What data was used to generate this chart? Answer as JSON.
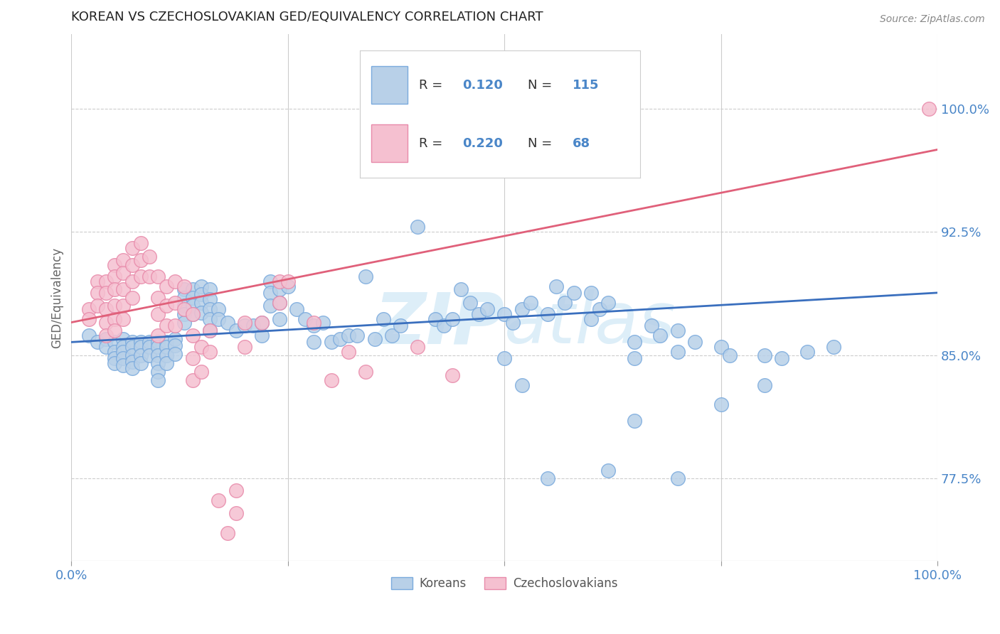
{
  "title": "KOREAN VS CZECHOSLOVAKIAN GED/EQUIVALENCY CORRELATION CHART",
  "source": "Source: ZipAtlas.com",
  "ylabel": "GED/Equivalency",
  "ytick_labels": [
    "77.5%",
    "85.0%",
    "92.5%",
    "100.0%"
  ],
  "ytick_values": [
    0.775,
    0.85,
    0.925,
    1.0
  ],
  "xrange": [
    0.0,
    1.0
  ],
  "yrange": [
    0.725,
    1.045
  ],
  "korean_color": "#b8d0e8",
  "korean_edge_color": "#7aaadd",
  "czech_color": "#f5c0d0",
  "czech_edge_color": "#e88aaa",
  "korean_line_color": "#3a6fbe",
  "czech_line_color": "#e0607a",
  "label_color": "#4a86c8",
  "watermark": "ZIPatlas",
  "watermark_color": "#ddeef8",
  "korean_scatter": [
    [
      0.02,
      0.862
    ],
    [
      0.03,
      0.858
    ],
    [
      0.04,
      0.86
    ],
    [
      0.04,
      0.855
    ],
    [
      0.05,
      0.858
    ],
    [
      0.05,
      0.852
    ],
    [
      0.05,
      0.848
    ],
    [
      0.05,
      0.845
    ],
    [
      0.06,
      0.86
    ],
    [
      0.06,
      0.855
    ],
    [
      0.06,
      0.852
    ],
    [
      0.06,
      0.848
    ],
    [
      0.06,
      0.844
    ],
    [
      0.07,
      0.858
    ],
    [
      0.07,
      0.855
    ],
    [
      0.07,
      0.85
    ],
    [
      0.07,
      0.846
    ],
    [
      0.07,
      0.842
    ],
    [
      0.08,
      0.858
    ],
    [
      0.08,
      0.855
    ],
    [
      0.08,
      0.85
    ],
    [
      0.08,
      0.845
    ],
    [
      0.09,
      0.858
    ],
    [
      0.09,
      0.855
    ],
    [
      0.09,
      0.85
    ],
    [
      0.1,
      0.858
    ],
    [
      0.1,
      0.855
    ],
    [
      0.1,
      0.85
    ],
    [
      0.1,
      0.845
    ],
    [
      0.1,
      0.84
    ],
    [
      0.1,
      0.835
    ],
    [
      0.11,
      0.858
    ],
    [
      0.11,
      0.855
    ],
    [
      0.11,
      0.85
    ],
    [
      0.11,
      0.845
    ],
    [
      0.12,
      0.86
    ],
    [
      0.12,
      0.856
    ],
    [
      0.12,
      0.851
    ],
    [
      0.13,
      0.89
    ],
    [
      0.13,
      0.885
    ],
    [
      0.13,
      0.88
    ],
    [
      0.13,
      0.875
    ],
    [
      0.13,
      0.87
    ],
    [
      0.14,
      0.89
    ],
    [
      0.14,
      0.885
    ],
    [
      0.14,
      0.88
    ],
    [
      0.14,
      0.875
    ],
    [
      0.15,
      0.892
    ],
    [
      0.15,
      0.887
    ],
    [
      0.15,
      0.882
    ],
    [
      0.15,
      0.876
    ],
    [
      0.16,
      0.89
    ],
    [
      0.16,
      0.884
    ],
    [
      0.16,
      0.878
    ],
    [
      0.16,
      0.872
    ],
    [
      0.16,
      0.865
    ],
    [
      0.17,
      0.878
    ],
    [
      0.17,
      0.872
    ],
    [
      0.18,
      0.87
    ],
    [
      0.19,
      0.865
    ],
    [
      0.2,
      0.868
    ],
    [
      0.21,
      0.868
    ],
    [
      0.22,
      0.87
    ],
    [
      0.22,
      0.862
    ],
    [
      0.23,
      0.895
    ],
    [
      0.23,
      0.888
    ],
    [
      0.23,
      0.88
    ],
    [
      0.24,
      0.89
    ],
    [
      0.24,
      0.882
    ],
    [
      0.24,
      0.872
    ],
    [
      0.25,
      0.892
    ],
    [
      0.26,
      0.878
    ],
    [
      0.27,
      0.872
    ],
    [
      0.28,
      0.868
    ],
    [
      0.28,
      0.858
    ],
    [
      0.29,
      0.87
    ],
    [
      0.3,
      0.858
    ],
    [
      0.31,
      0.86
    ],
    [
      0.32,
      0.862
    ],
    [
      0.33,
      0.862
    ],
    [
      0.34,
      0.898
    ],
    [
      0.35,
      0.86
    ],
    [
      0.36,
      0.872
    ],
    [
      0.37,
      0.862
    ],
    [
      0.38,
      0.868
    ],
    [
      0.4,
      0.928
    ],
    [
      0.42,
      0.872
    ],
    [
      0.43,
      0.868
    ],
    [
      0.44,
      0.872
    ],
    [
      0.45,
      0.89
    ],
    [
      0.46,
      0.882
    ],
    [
      0.47,
      0.875
    ],
    [
      0.48,
      0.878
    ],
    [
      0.5,
      0.875
    ],
    [
      0.5,
      0.848
    ],
    [
      0.51,
      0.87
    ],
    [
      0.52,
      0.878
    ],
    [
      0.53,
      0.882
    ],
    [
      0.55,
      0.875
    ],
    [
      0.56,
      0.892
    ],
    [
      0.57,
      0.882
    ],
    [
      0.58,
      0.888
    ],
    [
      0.6,
      0.888
    ],
    [
      0.6,
      0.872
    ],
    [
      0.61,
      0.878
    ],
    [
      0.62,
      0.882
    ],
    [
      0.65,
      0.858
    ],
    [
      0.65,
      0.848
    ],
    [
      0.67,
      0.868
    ],
    [
      0.68,
      0.862
    ],
    [
      0.7,
      0.865
    ],
    [
      0.7,
      0.852
    ],
    [
      0.72,
      0.858
    ],
    [
      0.75,
      0.855
    ],
    [
      0.76,
      0.85
    ],
    [
      0.8,
      0.85
    ],
    [
      0.82,
      0.848
    ],
    [
      0.85,
      0.852
    ],
    [
      0.88,
      0.855
    ],
    [
      0.55,
      0.775
    ],
    [
      0.62,
      0.78
    ],
    [
      0.7,
      0.775
    ],
    [
      0.65,
      0.81
    ],
    [
      0.75,
      0.82
    ],
    [
      0.8,
      0.832
    ],
    [
      0.52,
      0.832
    ]
  ],
  "czech_scatter": [
    [
      0.02,
      0.878
    ],
    [
      0.02,
      0.872
    ],
    [
      0.03,
      0.895
    ],
    [
      0.03,
      0.888
    ],
    [
      0.03,
      0.88
    ],
    [
      0.04,
      0.895
    ],
    [
      0.04,
      0.888
    ],
    [
      0.04,
      0.878
    ],
    [
      0.04,
      0.87
    ],
    [
      0.04,
      0.862
    ],
    [
      0.05,
      0.905
    ],
    [
      0.05,
      0.898
    ],
    [
      0.05,
      0.89
    ],
    [
      0.05,
      0.88
    ],
    [
      0.05,
      0.872
    ],
    [
      0.05,
      0.865
    ],
    [
      0.06,
      0.908
    ],
    [
      0.06,
      0.9
    ],
    [
      0.06,
      0.89
    ],
    [
      0.06,
      0.88
    ],
    [
      0.06,
      0.872
    ],
    [
      0.07,
      0.915
    ],
    [
      0.07,
      0.905
    ],
    [
      0.07,
      0.895
    ],
    [
      0.07,
      0.885
    ],
    [
      0.08,
      0.918
    ],
    [
      0.08,
      0.908
    ],
    [
      0.08,
      0.898
    ],
    [
      0.09,
      0.91
    ],
    [
      0.09,
      0.898
    ],
    [
      0.1,
      0.898
    ],
    [
      0.1,
      0.885
    ],
    [
      0.1,
      0.875
    ],
    [
      0.1,
      0.862
    ],
    [
      0.11,
      0.892
    ],
    [
      0.11,
      0.88
    ],
    [
      0.11,
      0.868
    ],
    [
      0.12,
      0.895
    ],
    [
      0.12,
      0.882
    ],
    [
      0.12,
      0.868
    ],
    [
      0.13,
      0.892
    ],
    [
      0.13,
      0.878
    ],
    [
      0.14,
      0.875
    ],
    [
      0.14,
      0.862
    ],
    [
      0.14,
      0.848
    ],
    [
      0.14,
      0.835
    ],
    [
      0.15,
      0.855
    ],
    [
      0.15,
      0.84
    ],
    [
      0.16,
      0.865
    ],
    [
      0.16,
      0.852
    ],
    [
      0.17,
      0.762
    ],
    [
      0.18,
      0.742
    ],
    [
      0.19,
      0.768
    ],
    [
      0.19,
      0.754
    ],
    [
      0.2,
      0.87
    ],
    [
      0.2,
      0.855
    ],
    [
      0.22,
      0.87
    ],
    [
      0.24,
      0.895
    ],
    [
      0.24,
      0.882
    ],
    [
      0.25,
      0.895
    ],
    [
      0.28,
      0.87
    ],
    [
      0.3,
      0.835
    ],
    [
      0.32,
      0.852
    ],
    [
      0.34,
      0.84
    ],
    [
      0.4,
      0.855
    ],
    [
      0.44,
      0.838
    ],
    [
      0.99,
      1.0
    ]
  ],
  "korean_regression": [
    0.0,
    1.0,
    0.858,
    0.888
  ],
  "czech_regression": [
    0.0,
    1.0,
    0.87,
    0.975
  ]
}
